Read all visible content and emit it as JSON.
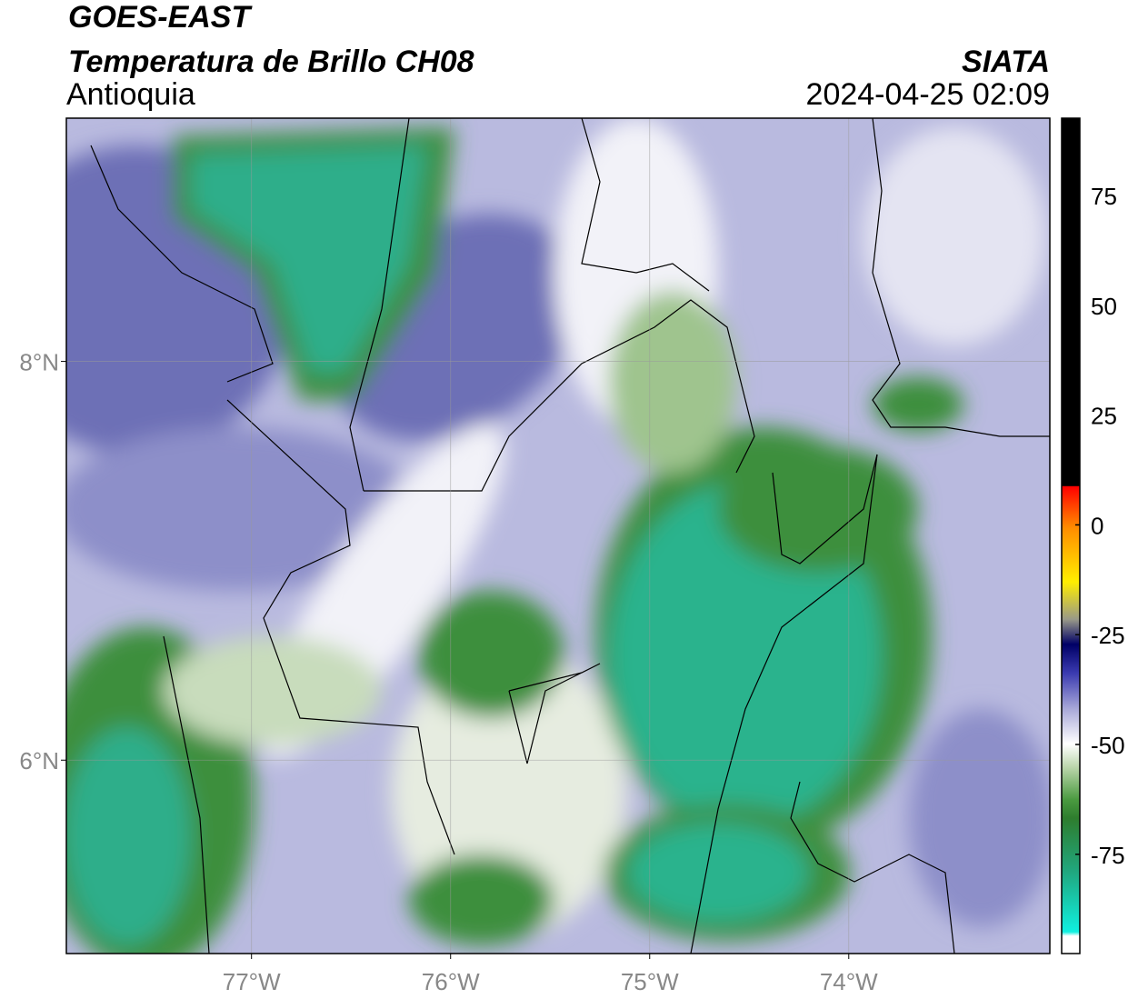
{
  "header": {
    "satellite": "GOES-EAST",
    "product": "Temperatura de Brillo CH08",
    "region": "Antioquia",
    "source": "SIATA",
    "datetime": "2024-04-25 02:09"
  },
  "map": {
    "xlim": [
      -77.93,
      -72.99
    ],
    "ylim": [
      5.03,
      9.22
    ],
    "xticks": [
      {
        "value": -77,
        "label": "77°W"
      },
      {
        "value": -76,
        "label": "76°W"
      },
      {
        "value": -75,
        "label": "75°W"
      },
      {
        "value": -74,
        "label": "74°W"
      }
    ],
    "yticks": [
      {
        "value": 8,
        "label": "8°N"
      },
      {
        "value": 6,
        "label": "6°N"
      }
    ],
    "grid": true
  },
  "colorbar": {
    "lim": [
      -97.6,
      92.6
    ],
    "ticks": [
      75,
      50,
      25,
      0,
      -25,
      -50,
      -75
    ]
  }
}
